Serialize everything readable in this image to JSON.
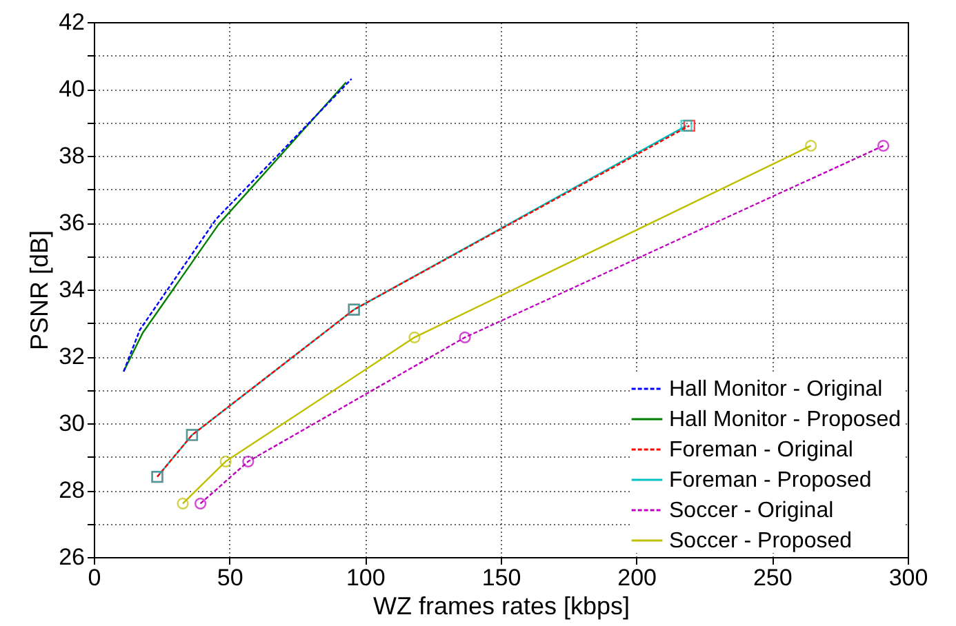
{
  "chart_data": {
    "type": "line",
    "xlabel": "WZ frames rates [kbps]",
    "ylabel": "PSNR [dB]",
    "xlim": [
      0,
      300
    ],
    "xticks": [
      0,
      50,
      100,
      150,
      200,
      250,
      300
    ],
    "ylim": [
      26,
      42
    ],
    "yticks": [
      26,
      {
        "value": 27,
        "label": null
      },
      28,
      {
        "value": 29,
        "label": null
      },
      30,
      {
        "value": 31,
        "label": null
      },
      32,
      {
        "value": 33,
        "label": null
      },
      34,
      {
        "value": 35,
        "label": null
      },
      36,
      {
        "value": 37,
        "label": null
      },
      38,
      {
        "value": 39,
        "label": null
      },
      40,
      {
        "value": 41,
        "label": null
      },
      42
    ],
    "grid": true,
    "legend": "bottom right",
    "series": [
      {
        "name": "Hall Monitor - Original",
        "color": "#0000ff",
        "line_style": "dashed",
        "marker": "none",
        "x": [
          11,
          17,
          45,
          95
        ],
        "values": [
          31.55,
          32.8,
          36.1,
          40.3
        ]
      },
      {
        "name": "Hall Monitor - Proposed",
        "color": "#008000",
        "line_style": "solid",
        "marker": "none",
        "x": [
          11,
          18,
          46,
          93
        ],
        "values": [
          31.55,
          32.7,
          35.95,
          40.2
        ]
      },
      {
        "name": "Foreman - Original",
        "color": "#ff0000",
        "line_style": "dashed",
        "marker": "square",
        "x": [
          23.4,
          36.2,
          95.9,
          219.5
        ],
        "values": [
          28.4,
          29.65,
          33.4,
          38.9
        ]
      },
      {
        "name": "Foreman - Proposed",
        "color": "#00bfbf",
        "line_style": "solid",
        "marker": "square",
        "x": [
          23.4,
          36.2,
          95.9,
          218.4
        ],
        "values": [
          28.4,
          29.65,
          33.4,
          38.9
        ]
      },
      {
        "name": "Soccer - Original",
        "color": "#bf00bf",
        "line_style": "dashed",
        "marker": "circle",
        "x": [
          39.3,
          56.9,
          136.8,
          291
        ],
        "values": [
          27.6,
          28.86,
          32.57,
          38.3
        ]
      },
      {
        "name": "Soccer - Proposed",
        "color": "#bfbf00",
        "line_style": "solid",
        "marker": "circle",
        "x": [
          32.8,
          48.6,
          118.2,
          264.3
        ],
        "values": [
          27.6,
          28.86,
          32.57,
          38.3
        ]
      }
    ]
  }
}
